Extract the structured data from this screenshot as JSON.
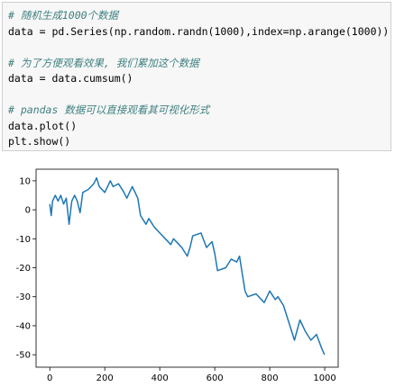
{
  "code_cell": {
    "lines": [
      "# 随机生成1000个数据",
      "data = pd.Series(np.random.randn(1000),index=np.arange(1000))",
      "",
      "# 为了方便观看效果, 我们累加这个数据",
      "data = data.cumsum()",
      "",
      "# pandas 数据可以直接观看其可视化形式",
      "data.plot()",
      "plt.show()"
    ]
  },
  "chart_data": {
    "type": "line",
    "color": "#1f77b4",
    "x": [
      0,
      5,
      10,
      20,
      30,
      40,
      50,
      60,
      70,
      80,
      90,
      100,
      110,
      120,
      140,
      160,
      170,
      180,
      200,
      220,
      230,
      250,
      270,
      280,
      300,
      320,
      330,
      350,
      360,
      380,
      400,
      420,
      440,
      450,
      470,
      480,
      500,
      510,
      520,
      550,
      570,
      590,
      600,
      610,
      640,
      660,
      680,
      690,
      700,
      710,
      720,
      750,
      780,
      800,
      820,
      830,
      850,
      860,
      880,
      890,
      910,
      930,
      950,
      970,
      990,
      999
    ],
    "values": [
      2,
      -2,
      3,
      5,
      3,
      5,
      2,
      4,
      -5,
      3,
      5,
      3,
      -1,
      6,
      7,
      9,
      11,
      8,
      6,
      10,
      8,
      9,
      6,
      4,
      8,
      4,
      -2,
      -5,
      -3,
      -6,
      -8,
      -10,
      -12,
      -10,
      -12,
      -13,
      -16,
      -13,
      -9,
      -8,
      -13,
      -11,
      -15,
      -21,
      -20,
      -17,
      -18,
      -16,
      -22,
      -28,
      -30,
      -29,
      -32,
      -28,
      -31,
      -30,
      -33,
      -36,
      -42,
      -45,
      -38,
      -42,
      -45,
      -43,
      -48,
      -50
    ],
    "xlim": [
      -50,
      1049
    ],
    "ylim": [
      -54.3,
      14
    ],
    "xticks": [
      0,
      200,
      400,
      600,
      800,
      1000
    ],
    "yticks": [
      -50,
      -40,
      -30,
      -20,
      -10,
      0,
      10
    ]
  }
}
